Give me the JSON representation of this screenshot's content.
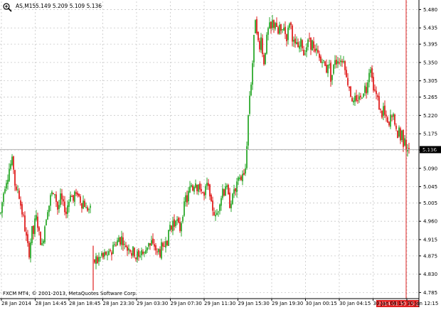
{
  "header": {
    "symbol_tf": "AS,M15",
    "ohlc": "5.149 5.209 5.109 5.136"
  },
  "footer": {
    "copyright": "FXCM MT4, © 2001-2013, MetaQuotes Software Corp."
  },
  "colors": {
    "bull": "#2eaa2e",
    "bear": "#e02020",
    "grid": "#c8c8c8",
    "vline": "#e02020",
    "hline": "#b0b0b0",
    "price_label_bg": "#000000",
    "time_label_bg": "#e02020"
  },
  "chart_data": {
    "type": "candlestick",
    "symbol": "AS",
    "timeframe": "M15",
    "ylim": [
      4.77,
      5.5
    ],
    "y_ticks": [
      "5.480",
      "5.435",
      "5.395",
      "5.350",
      "5.305",
      "5.265",
      "5.220",
      "5.175",
      "5.135",
      "5.090",
      "5.045",
      "5.005",
      "4.960",
      "4.915",
      "4.875",
      "4.830",
      "4.785"
    ],
    "x_ticks": [
      "28 Jan 2014",
      "28 Jan 14:45",
      "28 Jan 18:45",
      "28 Jan 23:30",
      "29 Jan 03:30",
      "29 Jan 07:30",
      "29 Jan 11:30",
      "29 Jan 15:30",
      "29 Jan 19:30",
      "30 Jan 00:15",
      "30 Jan 04:15",
      "30 Jan 08:15",
      "30 Jan 12:15"
    ],
    "current_price_label": "5.136",
    "current_price": 5.136,
    "cursor_time_label": "2014.01.30 15:25",
    "close_path": [
      [
        0,
        4.98
      ],
      [
        3,
        5.02
      ],
      [
        5,
        5.04
      ],
      [
        8,
        5.06
      ],
      [
        10,
        5.07
      ],
      [
        12,
        5.09
      ],
      [
        14,
        5.1
      ],
      [
        16,
        5.11
      ],
      [
        18,
        5.09
      ],
      [
        20,
        5.05
      ],
      [
        22,
        5.03
      ],
      [
        24,
        5.04
      ],
      [
        26,
        5.02
      ],
      [
        28,
        5.0
      ],
      [
        30,
        4.98
      ],
      [
        32,
        4.97
      ],
      [
        34,
        4.94
      ],
      [
        36,
        4.92
      ],
      [
        38,
        4.9
      ],
      [
        40,
        4.88
      ],
      [
        42,
        4.91
      ],
      [
        44,
        4.94
      ],
      [
        46,
        4.93
      ],
      [
        48,
        4.96
      ],
      [
        50,
        4.97
      ],
      [
        52,
        4.95
      ],
      [
        54,
        4.93
      ],
      [
        56,
        4.91
      ],
      [
        58,
        4.9
      ],
      [
        60,
        4.92
      ],
      [
        62,
        4.95
      ],
      [
        64,
        4.97
      ],
      [
        66,
        4.99
      ],
      [
        68,
        5.0
      ],
      [
        70,
        5.02
      ],
      [
        72,
        5.03
      ],
      [
        74,
        5.02
      ],
      [
        76,
        5.03
      ],
      [
        78,
        5.01
      ],
      [
        80,
        4.99
      ],
      [
        82,
        5.0
      ],
      [
        84,
        5.02
      ],
      [
        86,
        5.01
      ],
      [
        88,
        5.0
      ],
      [
        90,
        4.99
      ],
      [
        92,
        4.98
      ],
      [
        94,
        5.0
      ],
      [
        96,
        5.01
      ],
      [
        98,
        5.03
      ],
      [
        100,
        5.02
      ],
      [
        102,
        5.01
      ],
      [
        104,
        5.03
      ],
      [
        106,
        5.02
      ],
      [
        108,
        5.03
      ],
      [
        110,
        5.02
      ],
      [
        112,
        5.01
      ],
      [
        114,
        5.0
      ],
      [
        116,
        5.01
      ],
      [
        118,
        5.0
      ],
      [
        120,
        4.99
      ],
      [
        122,
        4.99
      ],
      [
        124,
        4.99
      ],
      [
        126,
        4.99
      ],
      [
        130,
        4.84
      ],
      [
        132,
        4.86
      ],
      [
        134,
        4.87
      ],
      [
        136,
        4.86
      ],
      [
        138,
        4.87
      ],
      [
        140,
        4.87
      ],
      [
        142,
        4.88
      ],
      [
        144,
        4.87
      ],
      [
        146,
        4.88
      ],
      [
        148,
        4.88
      ],
      [
        150,
        4.87
      ],
      [
        152,
        4.88
      ],
      [
        154,
        4.89
      ],
      [
        156,
        4.88
      ],
      [
        158,
        4.9
      ],
      [
        160,
        4.91
      ],
      [
        162,
        4.9
      ],
      [
        164,
        4.91
      ],
      [
        166,
        4.92
      ],
      [
        168,
        4.91
      ],
      [
        170,
        4.92
      ],
      [
        172,
        4.91
      ],
      [
        174,
        4.9
      ],
      [
        176,
        4.9
      ],
      [
        178,
        4.89
      ],
      [
        180,
        4.9
      ],
      [
        182,
        4.89
      ],
      [
        184,
        4.88
      ],
      [
        186,
        4.89
      ],
      [
        188,
        4.88
      ],
      [
        190,
        4.87
      ],
      [
        192,
        4.88
      ],
      [
        194,
        4.87
      ],
      [
        196,
        4.88
      ],
      [
        198,
        4.89
      ],
      [
        200,
        4.88
      ],
      [
        202,
        4.88
      ],
      [
        204,
        4.89
      ],
      [
        206,
        4.9
      ],
      [
        208,
        4.91
      ],
      [
        210,
        4.9
      ],
      [
        212,
        4.91
      ],
      [
        214,
        4.9
      ],
      [
        216,
        4.9
      ],
      [
        218,
        4.89
      ],
      [
        220,
        4.88
      ],
      [
        222,
        4.89
      ],
      [
        224,
        4.88
      ],
      [
        226,
        4.9
      ],
      [
        228,
        4.89
      ],
      [
        230,
        4.9
      ],
      [
        232,
        4.92
      ],
      [
        234,
        4.91
      ],
      [
        236,
        4.93
      ],
      [
        238,
        4.95
      ],
      [
        240,
        4.94
      ],
      [
        242,
        4.96
      ],
      [
        244,
        4.95
      ],
      [
        246,
        4.97
      ],
      [
        248,
        4.96
      ],
      [
        250,
        4.95
      ],
      [
        252,
        4.94
      ],
      [
        254,
        4.96
      ],
      [
        256,
        4.98
      ],
      [
        258,
        5.0
      ],
      [
        260,
        5.02
      ],
      [
        262,
        5.01
      ],
      [
        264,
        5.03
      ],
      [
        266,
        5.04
      ],
      [
        268,
        5.05
      ],
      [
        270,
        5.04
      ],
      [
        272,
        5.05
      ],
      [
        274,
        5.06
      ],
      [
        276,
        5.04
      ],
      [
        278,
        5.05
      ],
      [
        280,
        5.03
      ],
      [
        282,
        5.04
      ],
      [
        284,
        5.03
      ],
      [
        286,
        5.02
      ],
      [
        288,
        5.04
      ],
      [
        290,
        5.05
      ],
      [
        292,
        5.04
      ],
      [
        294,
        5.03
      ],
      [
        296,
        5.0
      ],
      [
        298,
        4.99
      ],
      [
        300,
        4.98
      ],
      [
        302,
        4.97
      ],
      [
        304,
        4.98
      ],
      [
        306,
        4.99
      ],
      [
        308,
        5.01
      ],
      [
        310,
        5.02
      ],
      [
        312,
        5.04
      ],
      [
        314,
        5.03
      ],
      [
        316,
        5.05
      ],
      [
        318,
        5.04
      ],
      [
        320,
        5.02
      ],
      [
        322,
        5.0
      ],
      [
        324,
        5.01
      ],
      [
        326,
        5.02
      ],
      [
        328,
        5.04
      ],
      [
        330,
        5.03
      ],
      [
        332,
        5.05
      ],
      [
        334,
        5.06
      ],
      [
        336,
        5.07
      ],
      [
        338,
        5.06
      ],
      [
        340,
        5.08
      ],
      [
        342,
        5.07
      ],
      [
        344,
        5.09
      ],
      [
        346,
        5.15
      ],
      [
        348,
        5.22
      ],
      [
        350,
        5.27
      ],
      [
        352,
        5.3
      ],
      [
        354,
        5.35
      ],
      [
        356,
        5.41
      ],
      [
        358,
        5.46
      ],
      [
        360,
        5.43
      ],
      [
        362,
        5.4
      ],
      [
        364,
        5.38
      ],
      [
        366,
        5.42
      ],
      [
        368,
        5.37
      ],
      [
        370,
        5.35
      ],
      [
        372,
        5.38
      ],
      [
        374,
        5.41
      ],
      [
        376,
        5.43
      ],
      [
        378,
        5.44
      ],
      [
        380,
        5.43
      ],
      [
        382,
        5.45
      ],
      [
        384,
        5.44
      ],
      [
        386,
        5.45
      ],
      [
        388,
        5.43
      ],
      [
        390,
        5.42
      ],
      [
        392,
        5.44
      ],
      [
        394,
        5.42
      ],
      [
        396,
        5.43
      ],
      [
        398,
        5.44
      ],
      [
        400,
        5.42
      ],
      [
        402,
        5.41
      ],
      [
        404,
        5.43
      ],
      [
        406,
        5.45
      ],
      [
        408,
        5.44
      ],
      [
        410,
        5.41
      ],
      [
        412,
        5.4
      ],
      [
        414,
        5.39
      ],
      [
        416,
        5.4
      ],
      [
        418,
        5.38
      ],
      [
        420,
        5.39
      ],
      [
        422,
        5.4
      ],
      [
        424,
        5.39
      ],
      [
        426,
        5.37
      ],
      [
        428,
        5.38
      ],
      [
        430,
        5.39
      ],
      [
        432,
        5.4
      ],
      [
        434,
        5.41
      ],
      [
        436,
        5.39
      ],
      [
        438,
        5.4
      ],
      [
        440,
        5.38
      ],
      [
        442,
        5.37
      ],
      [
        444,
        5.38
      ],
      [
        446,
        5.37
      ],
      [
        448,
        5.36
      ],
      [
        450,
        5.35
      ],
      [
        452,
        5.36
      ],
      [
        454,
        5.35
      ],
      [
        456,
        5.34
      ],
      [
        458,
        5.33
      ],
      [
        460,
        5.35
      ],
      [
        462,
        5.34
      ],
      [
        464,
        5.31
      ],
      [
        466,
        5.32
      ],
      [
        468,
        5.34
      ],
      [
        470,
        5.36
      ],
      [
        472,
        5.35
      ],
      [
        474,
        5.36
      ],
      [
        476,
        5.35
      ],
      [
        478,
        5.36
      ],
      [
        480,
        5.35
      ],
      [
        482,
        5.36
      ],
      [
        484,
        5.34
      ],
      [
        486,
        5.31
      ],
      [
        488,
        5.3
      ],
      [
        490,
        5.29
      ],
      [
        492,
        5.27
      ],
      [
        494,
        5.26
      ],
      [
        496,
        5.25
      ],
      [
        498,
        5.26
      ],
      [
        500,
        5.25
      ],
      [
        502,
        5.26
      ],
      [
        504,
        5.27
      ],
      [
        506,
        5.26
      ],
      [
        508,
        5.27
      ],
      [
        510,
        5.28
      ],
      [
        512,
        5.29
      ],
      [
        514,
        5.28
      ],
      [
        516,
        5.31
      ],
      [
        518,
        5.33
      ],
      [
        520,
        5.34
      ],
      [
        522,
        5.31
      ],
      [
        524,
        5.29
      ],
      [
        526,
        5.28
      ],
      [
        528,
        5.27
      ],
      [
        530,
        5.26
      ],
      [
        532,
        5.24
      ],
      [
        534,
        5.23
      ],
      [
        536,
        5.22
      ],
      [
        538,
        5.24
      ],
      [
        540,
        5.22
      ],
      [
        542,
        5.21
      ],
      [
        544,
        5.2
      ],
      [
        546,
        5.19
      ],
      [
        548,
        5.22
      ],
      [
        550,
        5.21
      ],
      [
        552,
        5.23
      ],
      [
        554,
        5.19
      ],
      [
        556,
        5.18
      ],
      [
        558,
        5.17
      ],
      [
        560,
        5.19
      ],
      [
        562,
        5.16
      ],
      [
        564,
        5.18
      ],
      [
        566,
        5.15
      ],
      [
        568,
        5.17
      ],
      [
        570,
        5.14
      ],
      [
        572,
        5.136
      ],
      [
        574,
        5.136
      ]
    ]
  }
}
